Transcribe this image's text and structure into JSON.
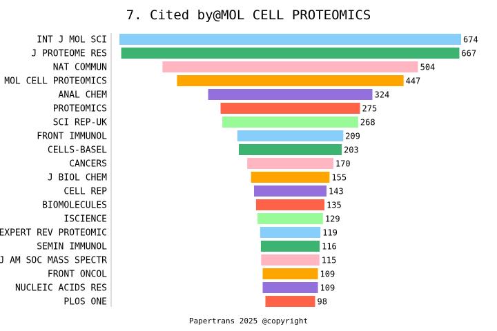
{
  "chart_data": {
    "type": "bar",
    "orientation": "horizontal-centered",
    "title": "7. Cited by@MOL CELL PROTEOMICS",
    "categories": [
      "INT J MOL SCI",
      "J PROTEOME RES",
      "NAT COMMUN",
      "MOL CELL PROTEOMICS",
      "ANAL CHEM",
      "PROTEOMICS",
      "SCI REP-UK",
      "FRONT IMMUNOL",
      "CELLS-BASEL",
      "CANCERS",
      "J BIOL CHEM",
      "CELL REP",
      "BIOMOLECULES",
      "ISCIENCE",
      "EXPERT REV PROTEOMIC",
      "SEMIN IMMUNOL",
      "J AM SOC MASS SPECTR",
      "FRONT ONCOL",
      "NUCLEIC ACIDS RES",
      "PLOS ONE"
    ],
    "values": [
      674,
      667,
      504,
      447,
      324,
      275,
      268,
      209,
      203,
      170,
      155,
      143,
      135,
      129,
      119,
      116,
      115,
      109,
      109,
      98
    ],
    "colors": [
      "#87CEFA",
      "#3CB371",
      "#FFB6C1",
      "#FFA500",
      "#9370DB",
      "#FF6347",
      "#98FB98"
    ],
    "grid": false,
    "legend": "none",
    "footer": "Papertrans 2025 @copyright"
  }
}
